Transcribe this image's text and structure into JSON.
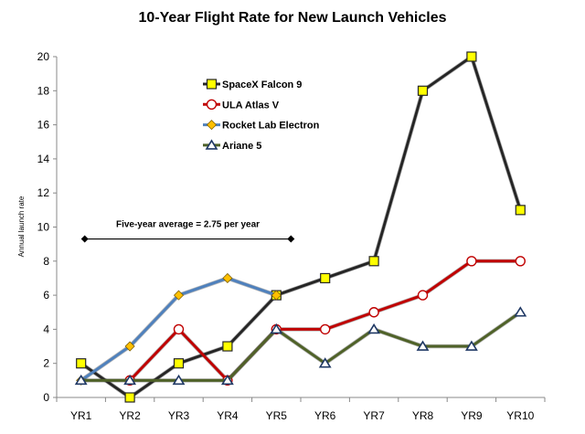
{
  "chart_data": {
    "type": "line",
    "title": "10-Year Flight Rate for New Launch Vehicles",
    "ylabel": "Annual launch rate",
    "xlabel": "",
    "categories": [
      "YR1",
      "YR2",
      "YR3",
      "YR4",
      "YR5",
      "YR6",
      "YR7",
      "YR8",
      "YR9",
      "YR10"
    ],
    "ylim": [
      0,
      20
    ],
    "yticks": [
      "0",
      "2",
      "4",
      "6",
      "8",
      "10",
      "12",
      "14",
      "16",
      "18",
      "20"
    ],
    "grid": false,
    "legend": "top-center",
    "series": [
      {
        "name": "SpaceX Falcon 9",
        "color": "#262626",
        "marker": "square",
        "marker_fill": "#ffff00",
        "marker_edge": "#262626",
        "values": [
          2,
          0,
          2,
          3,
          6,
          7,
          8,
          18,
          20,
          11
        ]
      },
      {
        "name": "ULA Atlas V",
        "color": "#c00000",
        "marker": "circle",
        "marker_fill": "#ffffff",
        "marker_edge": "#c00000",
        "values": [
          null,
          1,
          4,
          1,
          4,
          4,
          5,
          6,
          8,
          8
        ]
      },
      {
        "name": "Rocket Lab Electron",
        "color": "#4f81bd",
        "marker": "diamond",
        "marker_fill": "#ffc000",
        "marker_edge": "#7f6000",
        "values": [
          1,
          3,
          6,
          7,
          6,
          null,
          null,
          null,
          null,
          null
        ]
      },
      {
        "name": "Ariane 5",
        "color": "#4f6228",
        "marker": "triangle",
        "marker_fill": "#ffffff",
        "marker_edge": "#1f3864",
        "values": [
          1,
          1,
          1,
          1,
          4,
          2,
          4,
          3,
          3,
          5
        ]
      }
    ],
    "annotation": {
      "text": "Five-year average = 2.75 per year",
      "from": "YR1",
      "to": "YR5",
      "y": 9.3
    }
  }
}
